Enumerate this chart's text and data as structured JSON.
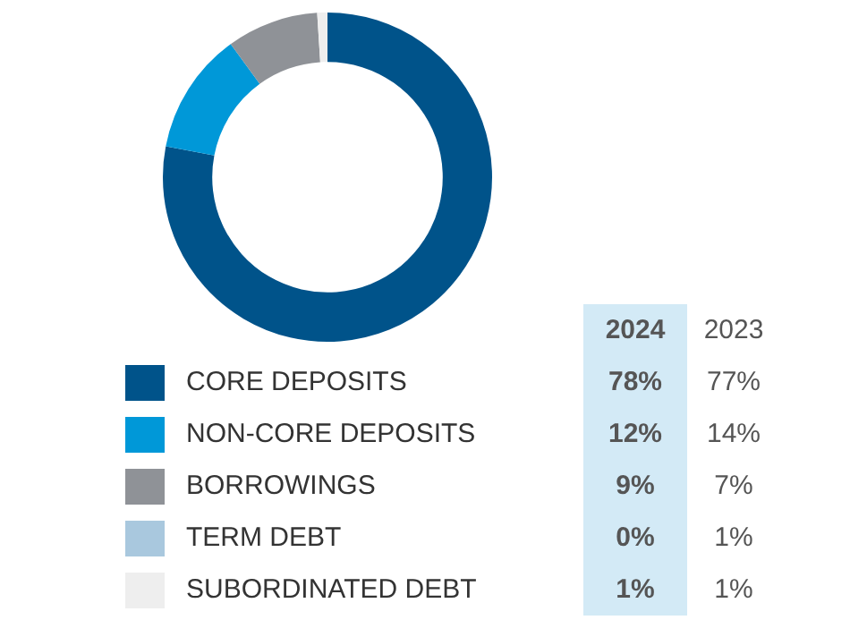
{
  "chart_data": {
    "type": "donut",
    "categories": [
      "CORE DEPOSITS",
      "NON-CORE DEPOSITS",
      "BORROWINGS",
      "TERM DEBT",
      "SUBORDINATED DEBT"
    ],
    "values": [
      78,
      12,
      9,
      0,
      1
    ],
    "colors": [
      "#00538a",
      "#0098d8",
      "#8f9297",
      "#a9c8de",
      "#eeeeee"
    ],
    "value_labels": [
      "78%",
      "12%",
      "9%",
      "0%",
      "1%"
    ],
    "annotations": [
      "2024",
      "2023",
      "77%",
      "14%",
      "7%",
      "1%",
      "1%"
    ],
    "legend": "bottom"
  }
}
